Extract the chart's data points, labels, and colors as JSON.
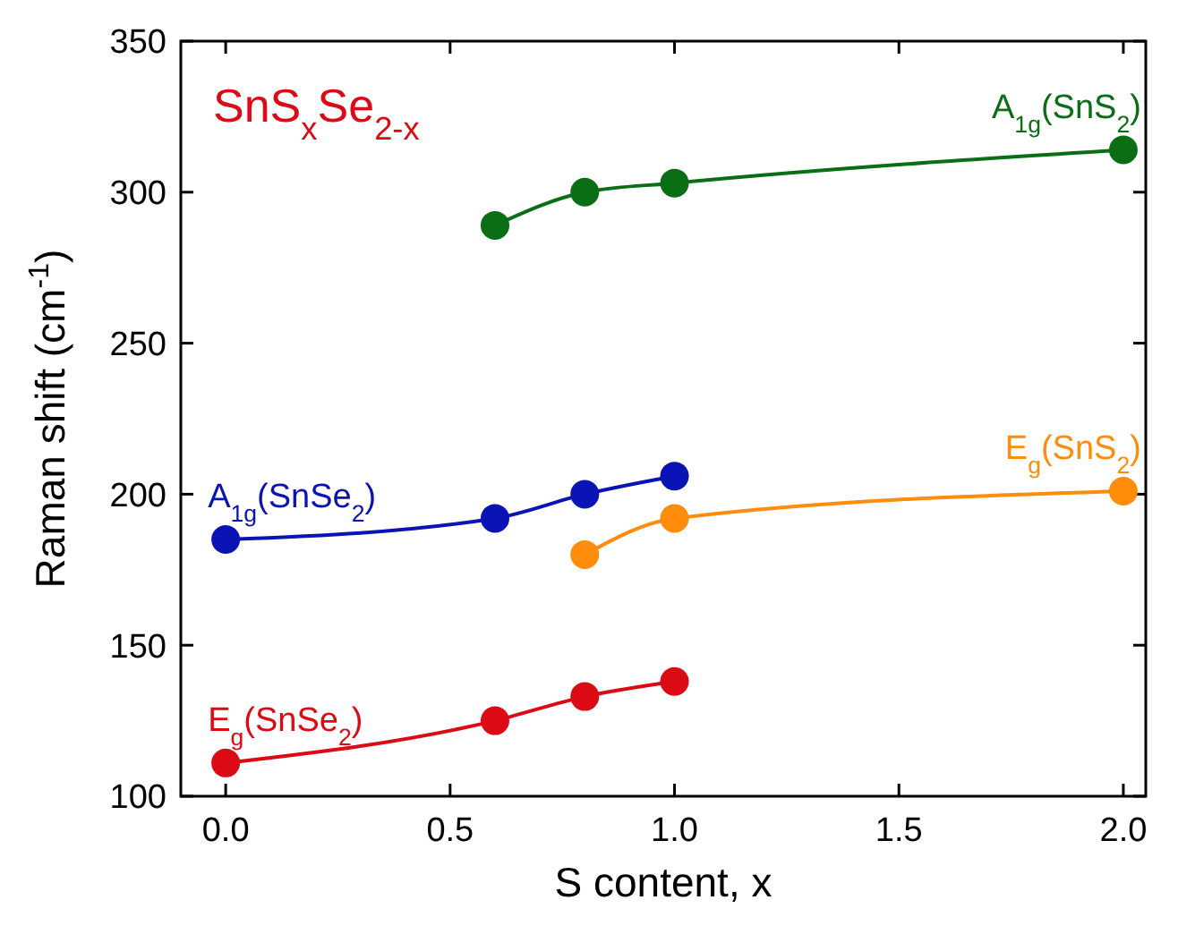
{
  "chart_data": {
    "type": "line",
    "xlabel": "S content, x",
    "ylabel": "Raman shift (cm$^{-1}$)",
    "annotations": [
      "SnS$_{x}$Se$_{2-x}$"
    ],
    "xlim": [
      -0.1,
      2.05
    ],
    "xticks": [
      {
        "value": 0,
        "label": "0.0"
      },
      {
        "value": 0.5,
        "label": "0.5"
      },
      {
        "value": 1,
        "label": "1.0"
      },
      {
        "value": 1.5,
        "label": "1.5"
      },
      {
        "value": 2,
        "label": "2.0"
      }
    ],
    "ylim": [
      100,
      350
    ],
    "yticks": [
      100,
      150,
      200,
      250,
      300,
      350
    ],
    "marker": "circle",
    "grid": false,
    "series": [
      {
        "name": "A$_{1g}$(SnS$_{2}$)",
        "color": "#0a6e14",
        "x": [
          0.6,
          0.8,
          1.0,
          2.0
        ],
        "values": [
          289,
          300,
          303,
          314
        ]
      },
      {
        "name": "E$_{g}$(SnS$_{2}$)",
        "color": "#ff8c0a",
        "x": [
          0.8,
          1.0,
          2.0
        ],
        "values": [
          180,
          192,
          201
        ]
      },
      {
        "name": "A$_{1g}$(SnSe$_{2}$)",
        "color": "#0a14b4",
        "x": [
          0,
          0.6,
          0.8,
          1.0
        ],
        "values": [
          185,
          192,
          200,
          206
        ]
      },
      {
        "name": "E$_{g}$(SnSe$_{2}$)",
        "color": "#dc0a14",
        "x": [
          0,
          0.6,
          0.8,
          1.0
        ],
        "values": [
          111,
          125,
          133,
          138
        ]
      }
    ]
  }
}
